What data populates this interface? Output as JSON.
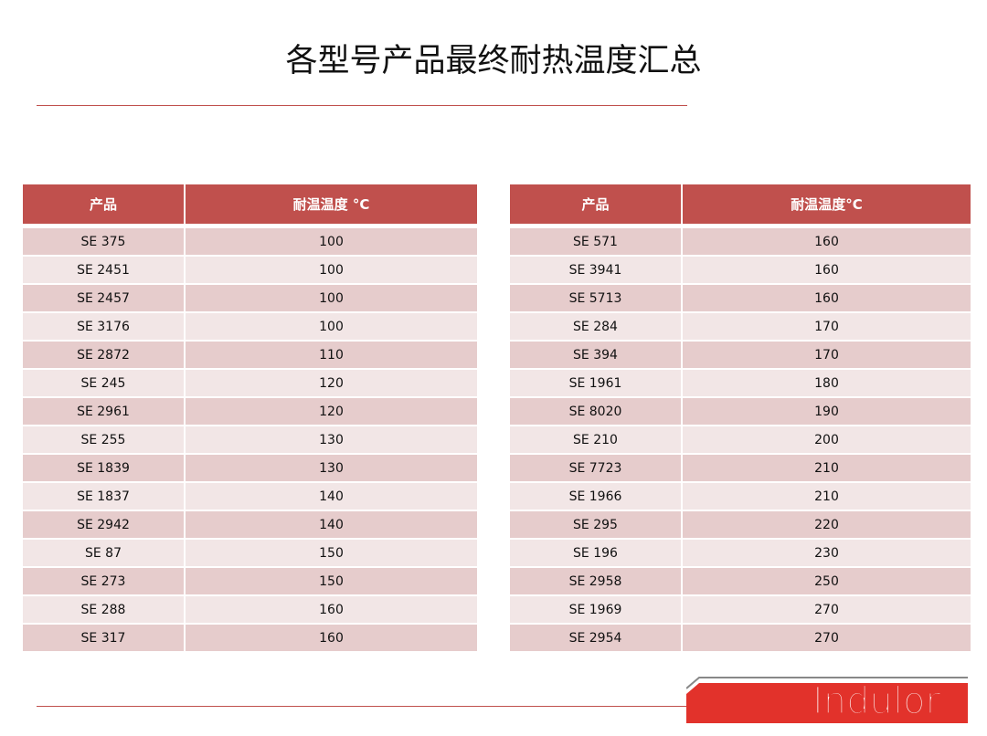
{
  "title": "各型号产品最终耐热温度汇总",
  "left_table": {
    "headers": [
      "产品",
      "耐温温度 °C"
    ],
    "rows": [
      [
        "SE 375",
        "100"
      ],
      [
        "SE 2451",
        "100"
      ],
      [
        "SE 2457",
        "100"
      ],
      [
        "SE 3176",
        "100"
      ],
      [
        "SE 2872",
        "110"
      ],
      [
        "SE 245",
        "120"
      ],
      [
        "SE 2961",
        "120"
      ],
      [
        "SE 255",
        "130"
      ],
      [
        "SE 1839",
        "130"
      ],
      [
        "SE 1837",
        "140"
      ],
      [
        "SE 2942",
        "140"
      ],
      [
        "SE 87",
        "150"
      ],
      [
        "SE 273",
        "150"
      ],
      [
        "SE 288",
        "160"
      ],
      [
        "SE 317",
        "160"
      ]
    ]
  },
  "right_table": {
    "headers": [
      "产品",
      "耐温温度°C"
    ],
    "rows": [
      [
        "SE 571",
        "160"
      ],
      [
        "SE 3941",
        "160"
      ],
      [
        "SE 5713",
        "160"
      ],
      [
        "SE 284",
        "170"
      ],
      [
        "SE 394",
        "170"
      ],
      [
        "SE 1961",
        "180"
      ],
      [
        "SE 8020",
        "190"
      ],
      [
        "SE 210",
        "200"
      ],
      [
        "SE 7723",
        "210"
      ],
      [
        "SE 1966",
        "210"
      ],
      [
        "SE 295",
        "220"
      ],
      [
        "SE 196",
        "230"
      ],
      [
        "SE 2958",
        "250"
      ],
      [
        "SE 1969",
        "270"
      ],
      [
        "SE 2954",
        "270"
      ]
    ]
  },
  "logo": {
    "text": "Indulor"
  },
  "colors": {
    "header": "#c0504d",
    "row_odd": "#e6cccc",
    "row_even": "#f2e6e6",
    "logo": "#e2322b"
  }
}
